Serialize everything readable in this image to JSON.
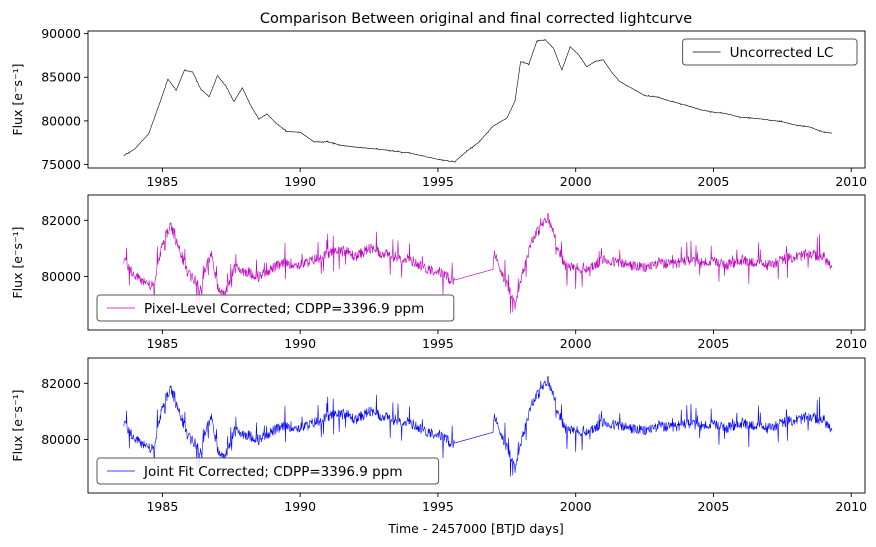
{
  "figure": {
    "title": "Comparison Between original and final corrected lightcurve",
    "xlabel": "Time - 2457000 [BTJD days]"
  },
  "chart_data": [
    {
      "type": "line",
      "panel": "top",
      "ylabel": "Flux [e⁻s⁻¹]",
      "xlim": [
        1982.3,
        2010.5
      ],
      "ylim": [
        74600,
        90300
      ],
      "xticks": [
        1985,
        1990,
        1995,
        2000,
        2005,
        2010
      ],
      "yticks": [
        75000,
        80000,
        85000,
        90000
      ],
      "legend_position": "upper right",
      "series": [
        {
          "name": "Uncorrected LC",
          "color": "#000000",
          "noise": 60,
          "x": [
            1983.6,
            1984.0,
            1984.5,
            1984.9,
            1985.2,
            1985.5,
            1985.8,
            1986.1,
            1986.4,
            1986.7,
            1987.0,
            1987.3,
            1987.6,
            1987.9,
            1988.2,
            1988.5,
            1988.8,
            1989.1,
            1989.5,
            1990.0,
            1990.5,
            1991.0,
            1991.5,
            1992.0,
            1993.0,
            1994.0,
            1995.0,
            1995.6,
            1996.0,
            1996.5,
            1997.0,
            1997.5,
            1997.8,
            1998.0,
            1998.3,
            1998.6,
            1998.9,
            1999.2,
            1999.5,
            1999.8,
            2000.1,
            2000.4,
            2000.7,
            2001.0,
            2001.3,
            2001.6,
            2002.0,
            2002.5,
            2003.0,
            2003.5,
            2004.0,
            2004.5,
            2005.0,
            2005.5,
            2006.0,
            2006.5,
            2007.0,
            2007.5,
            2008.0,
            2008.5,
            2009.0,
            2009.3
          ],
          "y": [
            76000,
            76800,
            78500,
            82000,
            84800,
            83500,
            85800,
            85600,
            83600,
            82800,
            85200,
            84000,
            82200,
            83800,
            81800,
            80200,
            80800,
            79800,
            78800,
            78700,
            77600,
            77600,
            77200,
            77000,
            76700,
            76300,
            75600,
            75300,
            76400,
            77600,
            79400,
            80300,
            82300,
            86800,
            86500,
            89200,
            89300,
            88300,
            85800,
            88500,
            87600,
            86200,
            86800,
            87000,
            85600,
            84500,
            83800,
            82900,
            82700,
            82200,
            81800,
            81300,
            81000,
            80800,
            80400,
            80300,
            80100,
            79900,
            79500,
            79300,
            78700,
            78600
          ]
        }
      ]
    },
    {
      "type": "line",
      "panel": "middle",
      "ylabel": "Flux [e⁻s⁻¹]",
      "xlim": [
        1982.3,
        2010.5
      ],
      "ylim": [
        78100,
        82900
      ],
      "xticks": [
        1985,
        1990,
        1995,
        2000,
        2005,
        2010
      ],
      "yticks": [
        80000,
        82000
      ],
      "legend_position": "lower left",
      "series": [
        {
          "name": "Pixel-Level Corrected; CDPP=3396.9 ppm",
          "color": "#bf00bf",
          "noise": 420,
          "x": [
            1983.6,
            1984.0,
            1984.4,
            1984.7,
            1985.0,
            1985.3,
            1985.6,
            1985.9,
            1986.1,
            1986.4,
            1986.6,
            1986.8,
            1987.0,
            1987.3,
            1987.6,
            1988.0,
            1988.5,
            1989.0,
            1989.5,
            1990.0,
            1990.5,
            1991.0,
            1991.5,
            1992.0,
            1992.5,
            1993.0,
            1993.5,
            1994.0,
            1994.5,
            1995.0,
            1995.6,
            1997.0,
            1997.3,
            1997.6,
            1997.8,
            1998.1,
            1998.4,
            1998.7,
            1999.0,
            1999.3,
            1999.6,
            2000.0,
            2000.5,
            2001.0,
            2001.5,
            2002.0,
            2002.5,
            2003.0,
            2003.5,
            2004.0,
            2004.5,
            2005.0,
            2005.5,
            2006.0,
            2006.5,
            2007.0,
            2007.5,
            2008.0,
            2008.5,
            2009.0,
            2009.3
          ],
          "y": [
            80600,
            80000,
            79800,
            79600,
            81200,
            81800,
            81000,
            80200,
            80000,
            79500,
            80500,
            80800,
            79600,
            79400,
            80300,
            80200,
            80000,
            80300,
            80500,
            80400,
            80600,
            80800,
            81000,
            80700,
            81000,
            80800,
            80700,
            80600,
            80300,
            80200,
            79800,
            80900,
            80200,
            79500,
            79000,
            80200,
            81300,
            81700,
            82100,
            81200,
            80400,
            80300,
            80300,
            80600,
            80500,
            80400,
            80300,
            80500,
            80400,
            80600,
            80500,
            80500,
            80400,
            80600,
            80500,
            80400,
            80600,
            80700,
            80800,
            80700,
            80300
          ]
        }
      ]
    },
    {
      "type": "line",
      "panel": "bottom",
      "ylabel": "Flux [e⁻s⁻¹]",
      "xlim": [
        1982.3,
        2010.5
      ],
      "ylim": [
        78100,
        82900
      ],
      "xticks": [
        1985,
        1990,
        1995,
        2000,
        2005,
        2010
      ],
      "yticks": [
        80000,
        82000
      ],
      "legend_position": "lower left",
      "series": [
        {
          "name": "Joint Fit Corrected; CDPP=3396.9 ppm",
          "color": "#0000ff",
          "noise": 420,
          "x": [
            1983.6,
            1984.0,
            1984.4,
            1984.7,
            1985.0,
            1985.3,
            1985.6,
            1985.9,
            1986.1,
            1986.4,
            1986.6,
            1986.8,
            1987.0,
            1987.3,
            1987.6,
            1988.0,
            1988.5,
            1989.0,
            1989.5,
            1990.0,
            1990.5,
            1991.0,
            1991.5,
            1992.0,
            1992.5,
            1993.0,
            1993.5,
            1994.0,
            1994.5,
            1995.0,
            1995.6,
            1997.0,
            1997.3,
            1997.6,
            1997.8,
            1998.1,
            1998.4,
            1998.7,
            1999.0,
            1999.3,
            1999.6,
            2000.0,
            2000.5,
            2001.0,
            2001.5,
            2002.0,
            2002.5,
            2003.0,
            2003.5,
            2004.0,
            2004.5,
            2005.0,
            2005.5,
            2006.0,
            2006.5,
            2007.0,
            2007.5,
            2008.0,
            2008.5,
            2009.0,
            2009.3
          ],
          "y": [
            80600,
            80000,
            79800,
            79600,
            81200,
            81800,
            81000,
            80200,
            80000,
            79500,
            80500,
            80800,
            79600,
            79400,
            80300,
            80200,
            80000,
            80300,
            80500,
            80400,
            80600,
            80800,
            81000,
            80700,
            81000,
            80800,
            80700,
            80600,
            80300,
            80200,
            79800,
            80900,
            80200,
            79500,
            79000,
            80200,
            81300,
            81700,
            82100,
            81200,
            80400,
            80300,
            80300,
            80600,
            80500,
            80400,
            80300,
            80500,
            80400,
            80600,
            80500,
            80500,
            80400,
            80600,
            80500,
            80400,
            80600,
            80700,
            80800,
            80700,
            80300
          ]
        }
      ]
    }
  ]
}
